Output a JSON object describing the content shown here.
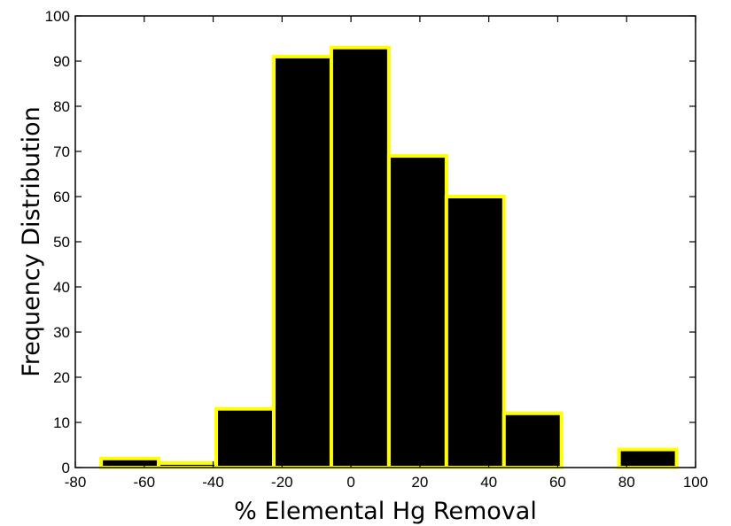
{
  "chart_data": {
    "type": "bar",
    "title": "",
    "xlabel": "% Elemental Hg Removal",
    "ylabel": "Frequency Distribution",
    "xlim": [
      -80,
      100
    ],
    "ylim": [
      0,
      100
    ],
    "xticks": [
      -80,
      -60,
      -40,
      -20,
      0,
      20,
      40,
      60,
      80,
      100
    ],
    "yticks": [
      0,
      10,
      20,
      30,
      40,
      50,
      60,
      70,
      80,
      90,
      100
    ],
    "bin_edges": [
      -72.5,
      -55.8,
      -39.1,
      -22.4,
      -5.7,
      11.0,
      27.7,
      44.4,
      61.1,
      77.8,
      94.5
    ],
    "values": [
      2,
      1,
      13,
      91,
      93,
      69,
      60,
      12,
      0,
      4
    ],
    "bar_fill": "#000000",
    "bar_edge": "#ffff00",
    "grid": false
  }
}
